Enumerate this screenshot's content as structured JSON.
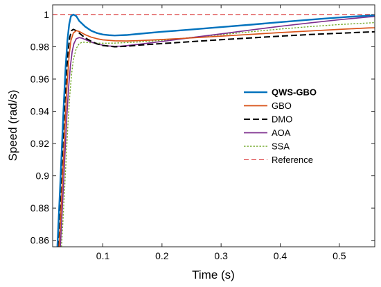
{
  "chart_data": {
    "type": "line",
    "title": "",
    "xlabel": "Time (s)",
    "ylabel": "Speed (rad/s)",
    "xlim": [
      0.015,
      0.56
    ],
    "ylim": [
      0.856,
      1.006
    ],
    "xticks": [
      0.1,
      0.2,
      0.3,
      0.4,
      0.5
    ],
    "xtick_labels": [
      "0.1",
      "0.2",
      "0.3",
      "0.4",
      "0.5"
    ],
    "yticks": [
      0.86,
      0.88,
      0.9,
      0.92,
      0.94,
      0.96,
      0.98,
      1
    ],
    "ytick_labels": [
      "0.86",
      "0.88",
      "0.9",
      "0.92",
      "0.94",
      "0.96",
      "0.98",
      "1"
    ],
    "grid": false,
    "legend_position": "center-right",
    "series": [
      {
        "name": "QWS-GBO",
        "color": "#0072bd",
        "dash": "solid",
        "bold": true,
        "x": [
          0.023,
          0.025,
          0.028,
          0.031,
          0.034,
          0.037,
          0.04,
          0.043,
          0.046,
          0.05,
          0.055,
          0.06,
          0.07,
          0.08,
          0.09,
          0.1,
          0.11,
          0.12,
          0.14,
          0.16,
          0.2,
          0.25,
          0.3,
          0.35,
          0.4,
          0.45,
          0.5,
          0.55,
          0.56
        ],
        "y": [
          0.856,
          0.872,
          0.896,
          0.921,
          0.946,
          0.968,
          0.984,
          0.994,
          0.999,
          1.0,
          0.999,
          0.996,
          0.9925,
          0.99,
          0.9885,
          0.9876,
          0.9872,
          0.987,
          0.9873,
          0.988,
          0.9893,
          0.9907,
          0.9922,
          0.9937,
          0.9953,
          0.9968,
          0.9982,
          0.9993,
          0.9995
        ]
      },
      {
        "name": "GBO",
        "color": "#d95319",
        "dash": "solid",
        "bold": false,
        "x": [
          0.026,
          0.028,
          0.031,
          0.034,
          0.037,
          0.04,
          0.043,
          0.046,
          0.05,
          0.055,
          0.06,
          0.065,
          0.07,
          0.08,
          0.09,
          0.1,
          0.12,
          0.14,
          0.16,
          0.2,
          0.25,
          0.3,
          0.35,
          0.4,
          0.45,
          0.5,
          0.55,
          0.56
        ],
        "y": [
          0.856,
          0.87,
          0.893,
          0.916,
          0.94,
          0.96,
          0.975,
          0.984,
          0.9885,
          0.99,
          0.9895,
          0.9885,
          0.9875,
          0.986,
          0.985,
          0.9843,
          0.9837,
          0.9836,
          0.9838,
          0.9845,
          0.9855,
          0.9866,
          0.9877,
          0.9888,
          0.9898,
          0.9908,
          0.9917,
          0.9918
        ]
      },
      {
        "name": "DMO",
        "color": "#000000",
        "dash": "dashed",
        "bold": false,
        "x": [
          0.024,
          0.026,
          0.029,
          0.032,
          0.035,
          0.038,
          0.041,
          0.044,
          0.047,
          0.05,
          0.055,
          0.06,
          0.065,
          0.07,
          0.08,
          0.09,
          0.1,
          0.12,
          0.14,
          0.16,
          0.2,
          0.25,
          0.3,
          0.35,
          0.4,
          0.45,
          0.5,
          0.55,
          0.56
        ],
        "y": [
          0.856,
          0.87,
          0.894,
          0.918,
          0.942,
          0.962,
          0.977,
          0.986,
          0.99,
          0.9908,
          0.99,
          0.9885,
          0.987,
          0.9855,
          0.9835,
          0.9818,
          0.9808,
          0.98,
          0.9803,
          0.981,
          0.982,
          0.9832,
          0.9844,
          0.9855,
          0.9866,
          0.9876,
          0.9884,
          0.9892,
          0.9893
        ]
      },
      {
        "name": "AOA",
        "color": "#7e2f8e",
        "dash": "solid",
        "bold": false,
        "x": [
          0.028,
          0.03,
          0.033,
          0.036,
          0.039,
          0.042,
          0.045,
          0.048,
          0.051,
          0.055,
          0.06,
          0.065,
          0.07,
          0.08,
          0.09,
          0.1,
          0.11,
          0.12,
          0.13,
          0.14,
          0.16,
          0.2,
          0.25,
          0.3,
          0.35,
          0.4,
          0.45,
          0.5,
          0.55,
          0.56
        ],
        "y": [
          0.856,
          0.87,
          0.892,
          0.915,
          0.937,
          0.955,
          0.968,
          0.977,
          0.982,
          0.985,
          0.9857,
          0.9853,
          0.9845,
          0.983,
          0.9818,
          0.981,
          0.9805,
          0.9803,
          0.9804,
          0.9807,
          0.9815,
          0.9833,
          0.9857,
          0.988,
          0.9904,
          0.9927,
          0.9948,
          0.9968,
          0.9985,
          0.9988
        ]
      },
      {
        "name": "SSA",
        "color": "#77ac30",
        "dash": "dotted",
        "bold": false,
        "x": [
          0.03,
          0.032,
          0.035,
          0.038,
          0.041,
          0.044,
          0.047,
          0.05,
          0.055,
          0.06,
          0.065,
          0.07,
          0.075,
          0.08,
          0.09,
          0.1,
          0.12,
          0.14,
          0.16,
          0.2,
          0.25,
          0.3,
          0.35,
          0.4,
          0.45,
          0.5,
          0.55,
          0.56
        ],
        "y": [
          0.856,
          0.869,
          0.89,
          0.912,
          0.933,
          0.95,
          0.963,
          0.972,
          0.979,
          0.982,
          0.9828,
          0.9828,
          0.9826,
          0.9825,
          0.9823,
          0.9822,
          0.9823,
          0.9826,
          0.983,
          0.984,
          0.9858,
          0.9875,
          0.9893,
          0.991,
          0.9925,
          0.9938,
          0.9948,
          0.995
        ]
      },
      {
        "name": "Reference",
        "color": "#d62728",
        "dash": "longdash",
        "bold": false,
        "x": [
          0.015,
          0.56
        ],
        "y": [
          1.0,
          1.0
        ]
      }
    ]
  }
}
